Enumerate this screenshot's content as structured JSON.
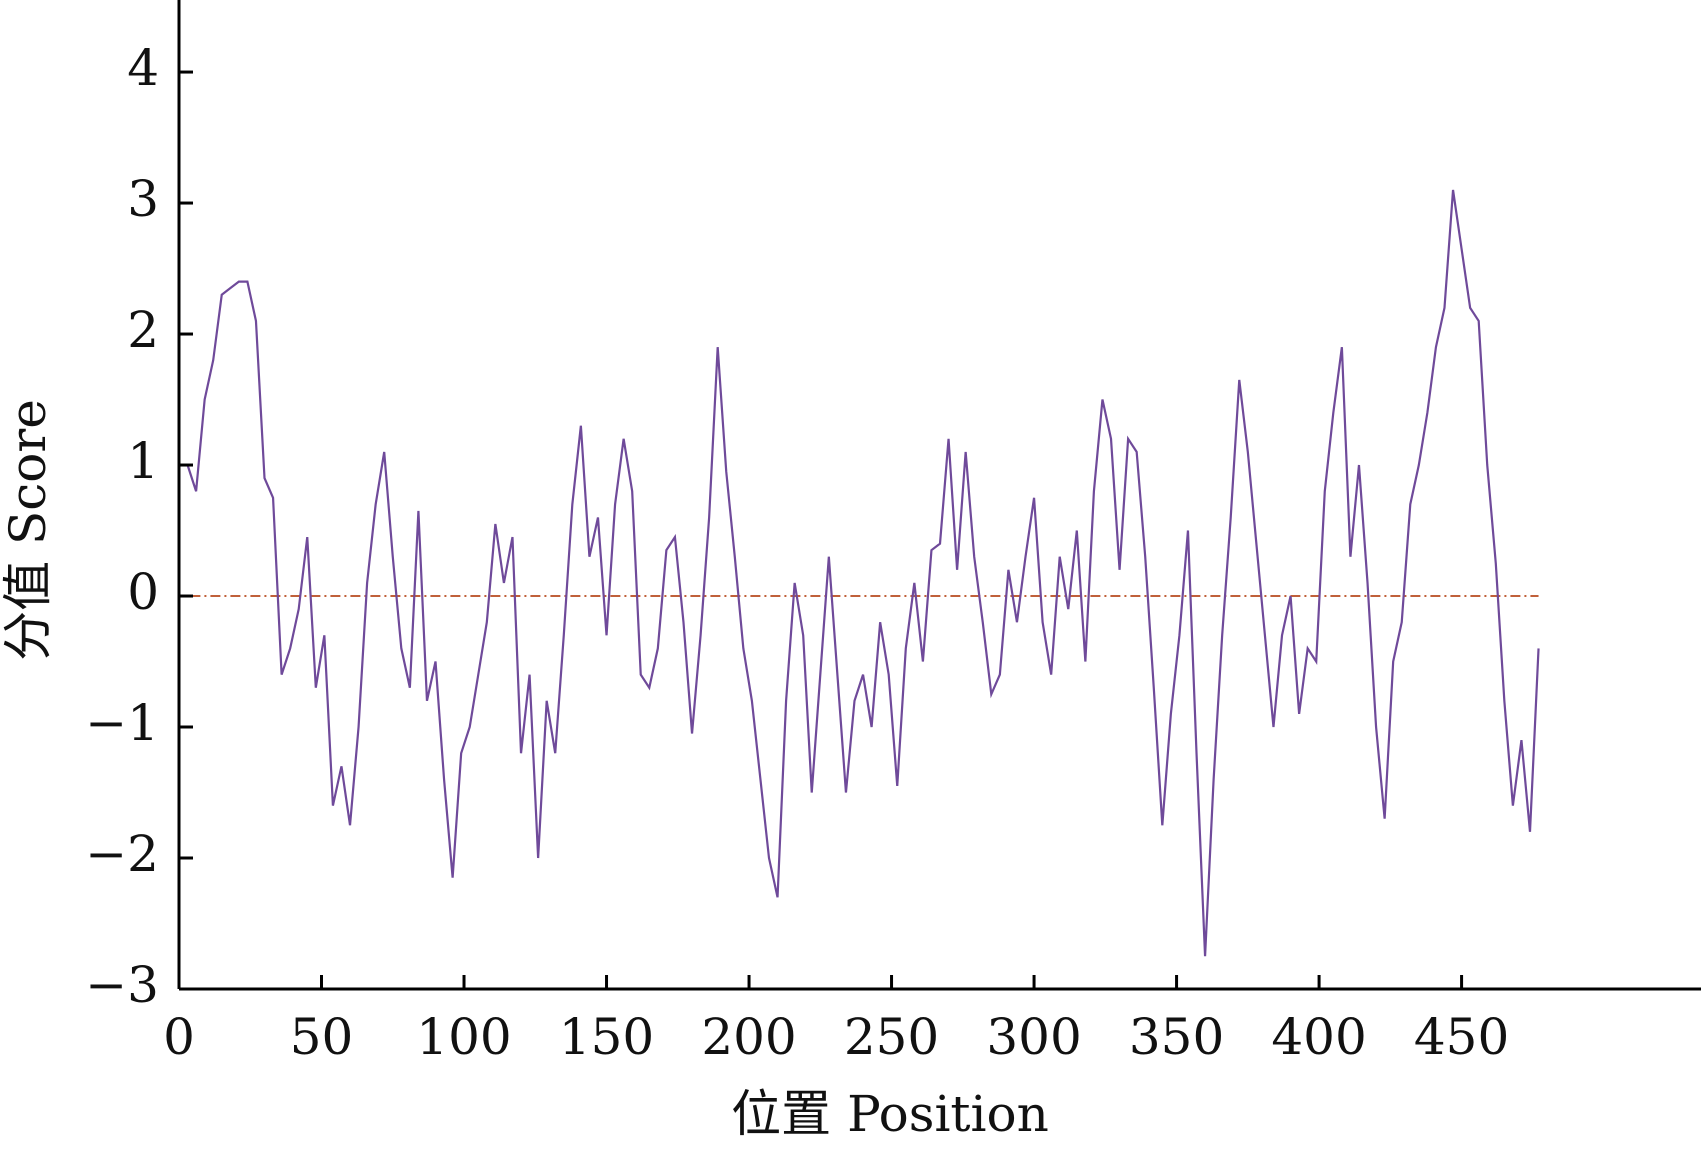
{
  "chart_data": {
    "type": "line",
    "xlabel": "位置 Position",
    "ylabel": "分值 Score",
    "x": [
      3,
      6,
      9,
      12,
      15,
      18,
      21,
      24,
      27,
      30,
      33,
      36,
      39,
      42,
      45,
      48,
      51,
      54,
      57,
      60,
      63,
      66,
      69,
      72,
      75,
      78,
      81,
      84,
      87,
      90,
      93,
      96,
      99,
      102,
      105,
      108,
      111,
      114,
      117,
      120,
      123,
      126,
      129,
      132,
      135,
      138,
      141,
      144,
      147,
      150,
      153,
      156,
      159,
      162,
      165,
      168,
      171,
      174,
      177,
      180,
      183,
      186,
      189,
      192,
      195,
      198,
      201,
      204,
      207,
      210,
      213,
      216,
      219,
      222,
      225,
      228,
      231,
      234,
      237,
      240,
      243,
      246,
      249,
      252,
      255,
      258,
      261,
      264,
      267,
      270,
      273,
      276,
      279,
      282,
      285,
      288,
      291,
      294,
      297,
      300,
      303,
      306,
      309,
      312,
      315,
      318,
      321,
      324,
      327,
      330,
      333,
      336,
      339,
      342,
      345,
      348,
      351,
      354,
      357,
      360,
      363,
      366,
      369,
      372,
      375,
      378,
      381,
      384,
      387,
      390,
      393,
      396,
      399,
      402,
      405,
      408,
      411,
      414,
      417,
      420,
      423,
      426,
      429,
      432,
      435,
      438,
      441,
      444,
      447,
      450,
      453,
      456,
      459,
      462,
      465,
      468,
      471,
      474,
      477
    ],
    "series": [
      {
        "color": "#6f4a9a",
        "values": [
          1.0,
          0.8,
          1.5,
          1.8,
          2.3,
          2.35,
          2.4,
          2.4,
          2.1,
          0.9,
          0.75,
          -0.6,
          -0.4,
          -0.1,
          0.45,
          -0.7,
          -0.3,
          -1.6,
          -1.3,
          -1.75,
          -1.0,
          0.1,
          0.7,
          1.1,
          0.3,
          -0.4,
          -0.7,
          0.65,
          -0.8,
          -0.5,
          -1.4,
          -2.15,
          -1.2,
          -1.0,
          -0.6,
          -0.2,
          0.55,
          0.1,
          0.45,
          -1.2,
          -0.6,
          -2.0,
          -0.8,
          -1.2,
          -0.3,
          0.7,
          1.3,
          0.3,
          0.6,
          -0.3,
          0.7,
          1.2,
          0.8,
          -0.6,
          -0.7,
          -0.4,
          0.35,
          0.45,
          -0.2,
          -1.05,
          -0.3,
          0.6,
          1.9,
          0.95,
          0.3,
          -0.4,
          -0.8,
          -1.4,
          -2.0,
          -2.3,
          -0.8,
          0.1,
          -0.3,
          -1.5,
          -0.6,
          0.3,
          -0.6,
          -1.5,
          -0.8,
          -0.6,
          -1.0,
          -0.2,
          -0.6,
          -1.45,
          -0.4,
          0.1,
          -0.5,
          0.35,
          0.4,
          1.2,
          0.2,
          1.1,
          0.3,
          -0.2,
          -0.75,
          -0.6,
          0.2,
          -0.2,
          0.3,
          0.75,
          -0.2,
          -0.6,
          0.3,
          -0.1,
          0.5,
          -0.5,
          0.8,
          1.5,
          1.2,
          0.2,
          1.2,
          1.1,
          0.3,
          -0.7,
          -1.75,
          -0.9,
          -0.3,
          0.5,
          -1.2,
          -2.75,
          -1.4,
          -0.3,
          0.6,
          1.65,
          1.1,
          0.4,
          -0.3,
          -1.0,
          -0.3,
          0.0,
          -0.9,
          -0.4,
          -0.5,
          0.8,
          1.4,
          1.9,
          0.3,
          1.0,
          0.1,
          -1.0,
          -1.7,
          -0.5,
          -0.2,
          0.7,
          1.0,
          1.4,
          1.9,
          2.2,
          3.1,
          2.65,
          2.2,
          2.1,
          1.0,
          0.25,
          -0.8,
          -1.6,
          -1.1,
          -1.8,
          -0.4
        ]
      }
    ],
    "reference_line": {
      "y": 0,
      "x": [
        4,
        477
      ],
      "color": "#c0603a"
    },
    "xlim": [
      0,
      534
    ],
    "xticks": [
      0,
      50,
      100,
      150,
      200,
      250,
      300,
      350,
      400,
      450
    ],
    "ylim": [
      -3,
      4.55
    ],
    "yticks": [
      {
        "value": -3,
        "label": "−3"
      },
      {
        "value": -2,
        "label": "−2"
      },
      {
        "value": -1,
        "label": "−1"
      },
      0,
      1,
      2,
      3,
      4
    ]
  }
}
